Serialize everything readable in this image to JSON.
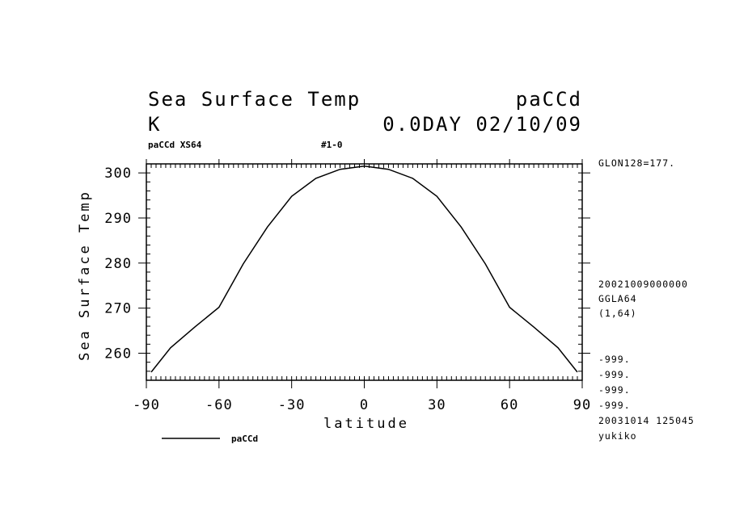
{
  "header": {
    "title_left": "Sea Surface Temp",
    "title_right": "paCCd",
    "units": "K",
    "time": "0.0DAY 02/10/09",
    "sub_left": "paCCd XS64",
    "sub_mid": "#1-0"
  },
  "side_info": {
    "glon": "GLON128=177.",
    "date": "20021009000000",
    "grid": "GGLA64",
    "range": "(1,64)",
    "missing": [
      "-999.",
      "-999.",
      "-999.",
      "-999."
    ],
    "stamp": "20031014 125045",
    "user": "yukiko"
  },
  "legend": {
    "label": "paCCd"
  },
  "chart_data": {
    "type": "line",
    "xlabel": "latitude",
    "ylabel": "Sea Surface Temp",
    "xlim": [
      -90,
      90
    ],
    "ylim": [
      254,
      302
    ],
    "xticks": [
      -90,
      -60,
      -30,
      0,
      30,
      60,
      90
    ],
    "xtick_labels": [
      "-90",
      "-60",
      "-30",
      "0",
      "30",
      "60",
      "90"
    ],
    "yticks": [
      260,
      270,
      280,
      290,
      300
    ],
    "ytick_labels": [
      "260",
      "270",
      "280",
      "290",
      "300"
    ],
    "series": [
      {
        "name": "paCCd",
        "x": [
          -88,
          -80,
          -70,
          -60,
          -50,
          -40,
          -30,
          -20,
          -10,
          0,
          10,
          20,
          30,
          40,
          50,
          60,
          70,
          80,
          88
        ],
        "y": [
          255.8,
          261.2,
          265.8,
          270.2,
          279.8,
          288.0,
          294.8,
          298.8,
          300.8,
          301.5,
          300.8,
          298.8,
          294.8,
          288.0,
          279.8,
          270.2,
          265.8,
          261.2,
          255.8
        ]
      }
    ]
  }
}
